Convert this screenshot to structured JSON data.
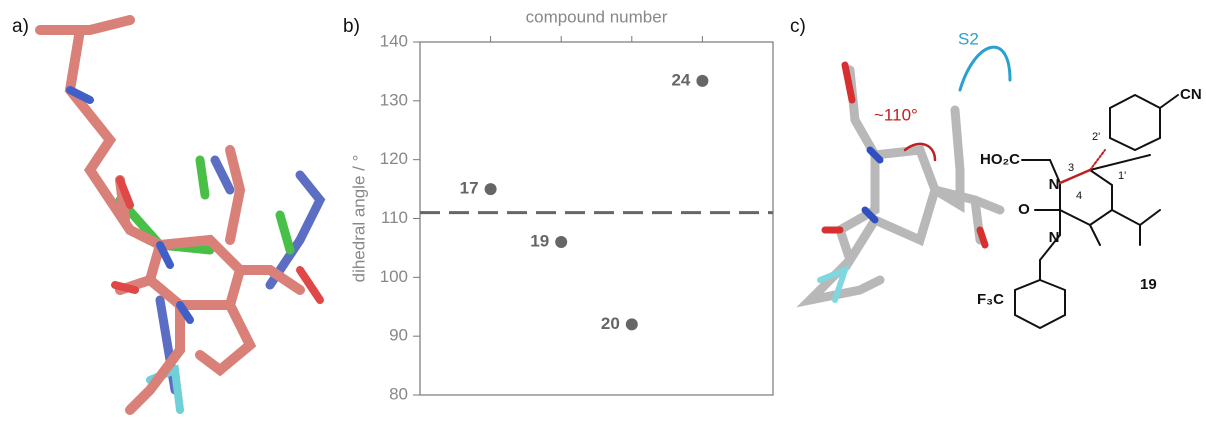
{
  "panels": {
    "a": "a)",
    "b": "b)",
    "c": "c)"
  },
  "annotations": {
    "pocket": "S2",
    "angle": "~110°"
  },
  "structure": {
    "cn": "CN",
    "acid": "HO₂C",
    "cf3": "F₃C",
    "n3": "N",
    "n1": "N",
    "o_urea": "O",
    "pos3": "3",
    "pos4": "4",
    "pos1p": "1'",
    "pos2p": "2'",
    "compound": "19"
  },
  "chart_data": {
    "type": "scatter",
    "x_label": "compound number",
    "y_label": "dihedral angle / °",
    "categories": [
      "17",
      "19",
      "20",
      "24"
    ],
    "values": [
      115,
      106,
      92,
      133.4
    ],
    "color": "#666666",
    "reference_line": 111,
    "ylim": [
      80,
      140
    ],
    "yticks": [
      80,
      90,
      100,
      110,
      120,
      130,
      140
    ]
  }
}
